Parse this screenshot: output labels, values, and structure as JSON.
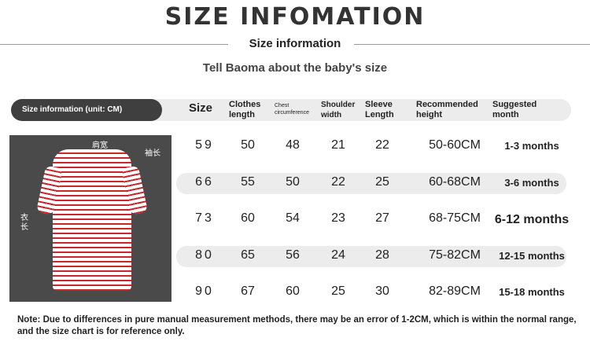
{
  "title": "SIZE INFOMATION",
  "subtitle": "Size information",
  "tagline": "Tell Baoma about the baby's size",
  "table": {
    "unit_label": "Size information (unit: CM)",
    "headers": [
      "Size",
      "Clothes length",
      "Chest circumference",
      "Shoulder width",
      "Sleeve Length",
      "Recommended height",
      "Suggested month"
    ],
    "rows": [
      [
        "59",
        "50",
        "48",
        "21",
        "22",
        "50-60CM",
        "1-3 months"
      ],
      [
        "66",
        "55",
        "50",
        "22",
        "25",
        "60-68CM",
        "3-6 months"
      ],
      [
        "73",
        "60",
        "54",
        "23",
        "27",
        "68-75CM",
        "6-12 months"
      ],
      [
        "80",
        "65",
        "56",
        "24",
        "28",
        "75-82CM",
        "12-15 months"
      ],
      [
        "90",
        "67",
        "60",
        "25",
        "30",
        "82-89CM",
        "15-18 months"
      ]
    ]
  },
  "photo_labels": {
    "shoulder": "肩宽",
    "sleeve": "袖长",
    "length": "衣长"
  },
  "note": "Note: Due to differences in pure manual measurement methods, there may be an error of 1-2CM, which is within the normal range, and the size chart is for reference only.",
  "colors": {
    "stripe": "#c8282d",
    "pill": "#3f3f3f",
    "band": "#ececec"
  }
}
